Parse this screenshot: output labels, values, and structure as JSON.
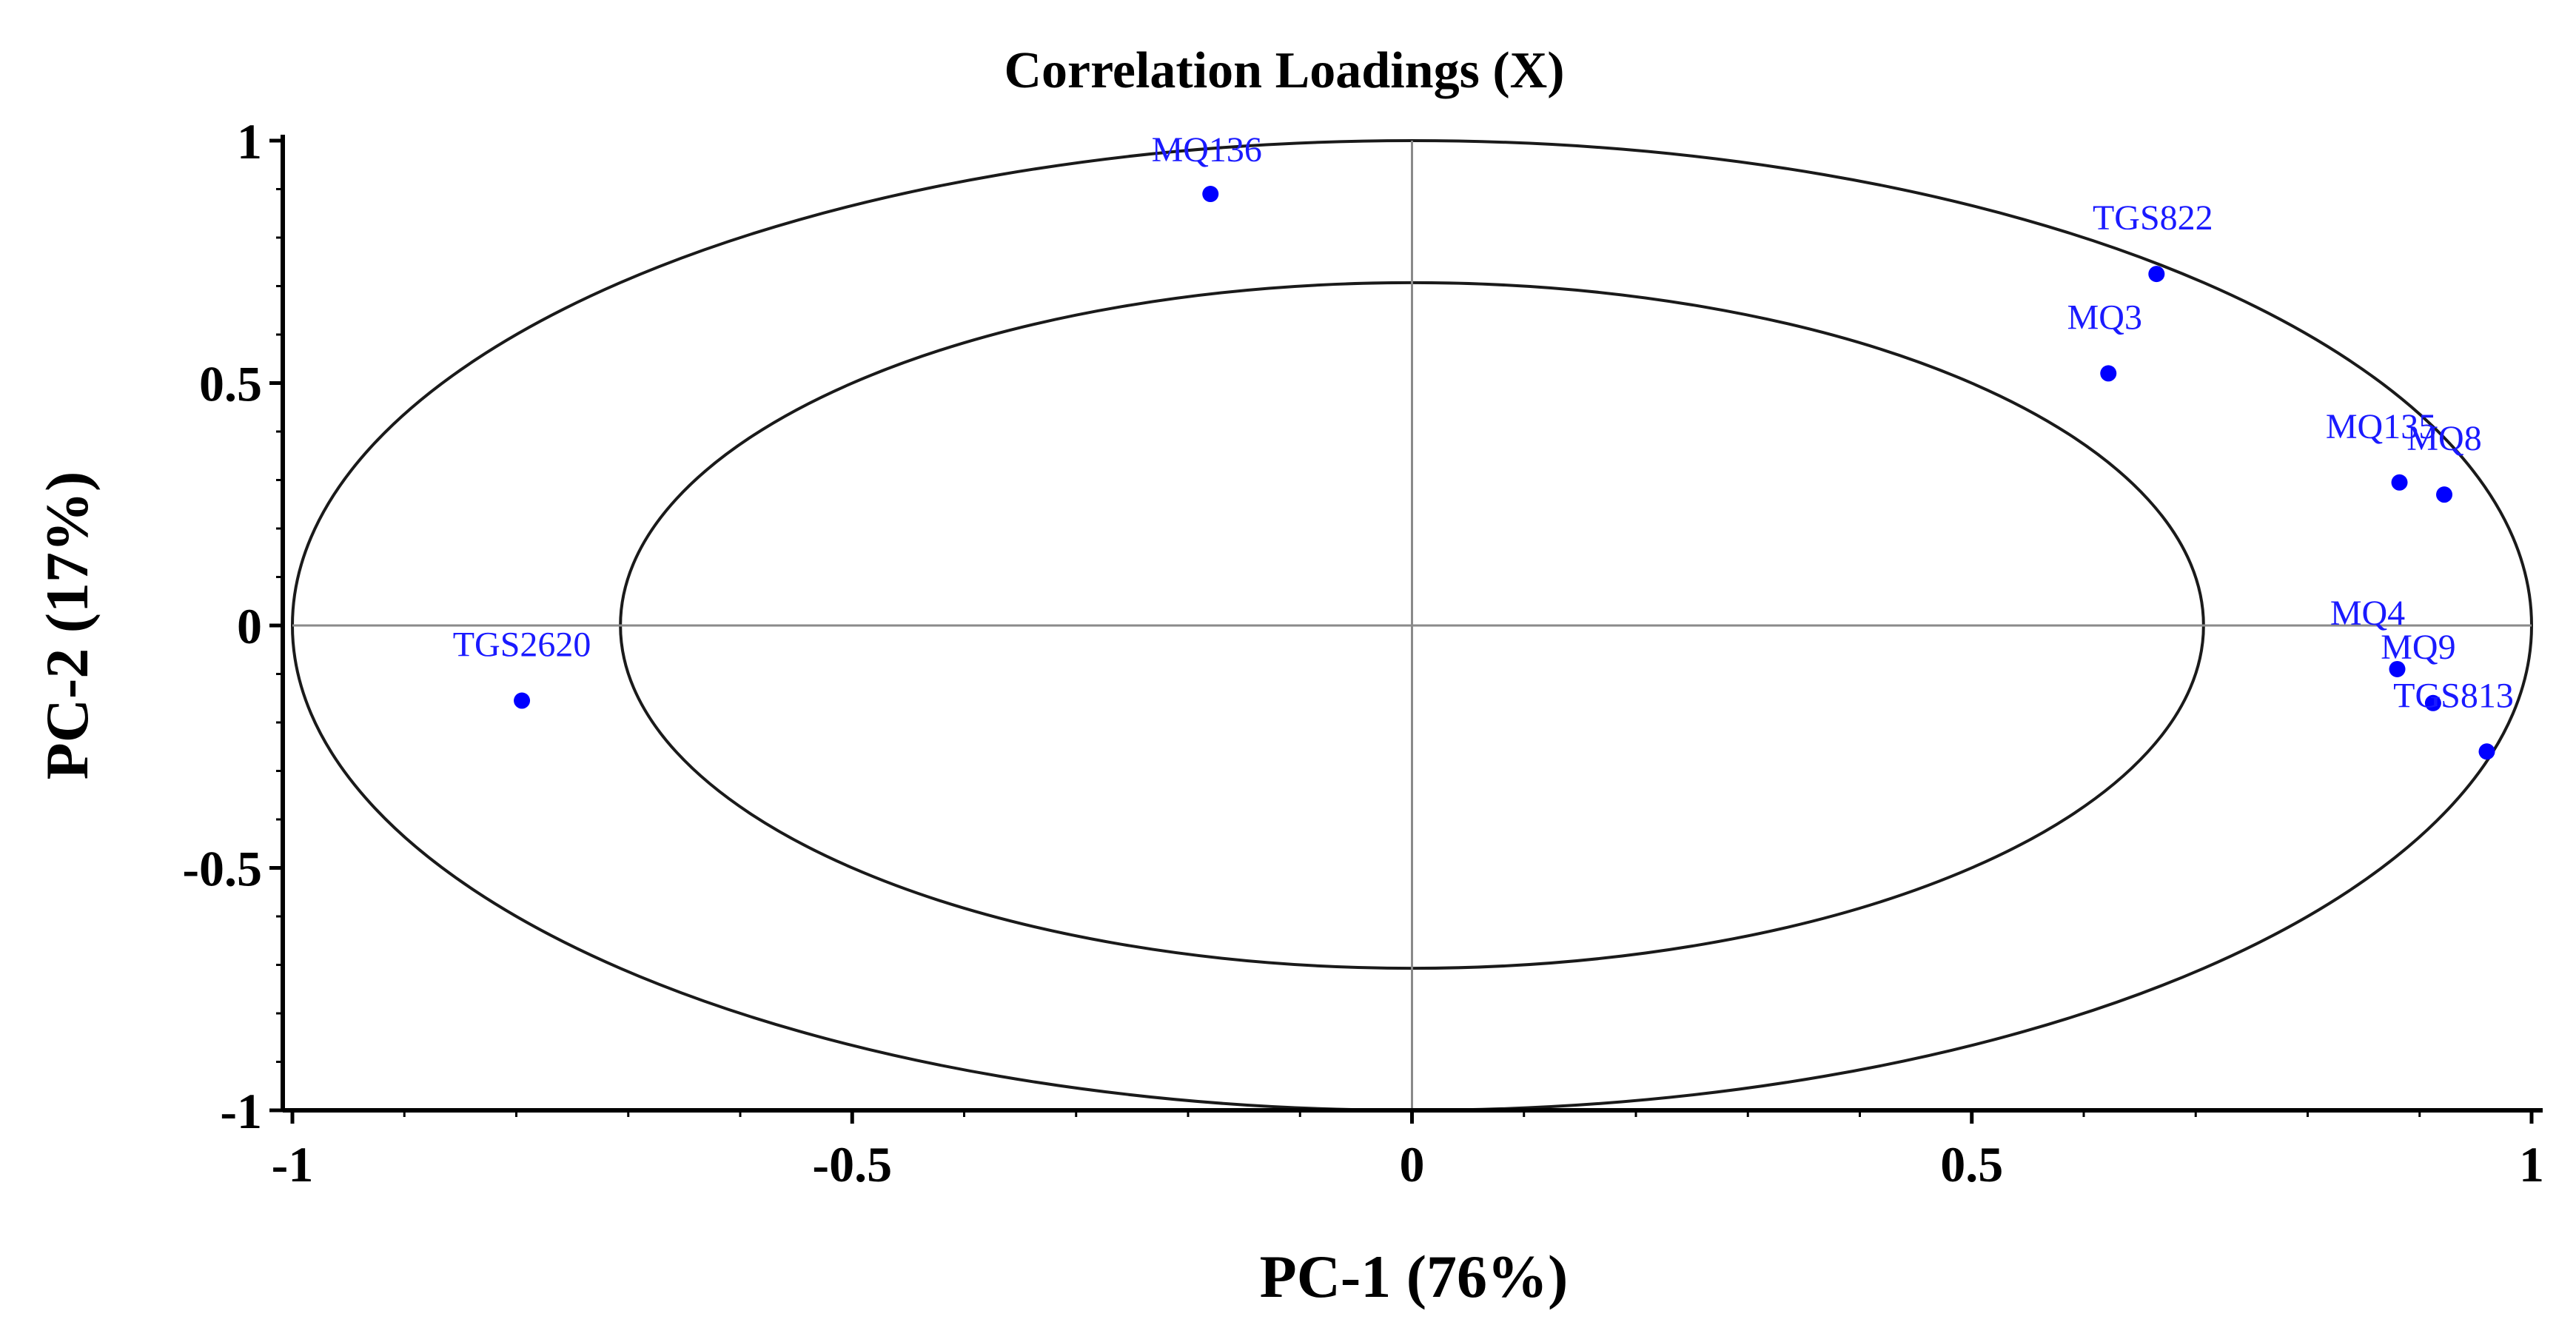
{
  "chart_data": {
    "type": "scatter",
    "title": "Correlation Loadings (X)",
    "xlabel": "PC-1 (76%)",
    "ylabel": "PC-2 (17%)",
    "xlim": [
      -1,
      1
    ],
    "ylim": [
      -1,
      1
    ],
    "x_ticks": [
      -1,
      -0.5,
      0,
      0.5,
      1
    ],
    "x_tick_labels": [
      "-1",
      "-0.5",
      "0",
      "0.5",
      "1"
    ],
    "y_ticks": [
      -1,
      -0.5,
      0,
      0.5,
      1
    ],
    "y_tick_labels": [
      "-1",
      "-0.5",
      "0",
      "0.5",
      "1"
    ],
    "grid": false,
    "legend": "none",
    "reference_ellipses": [
      {
        "name": "outer",
        "radius": 1.0
      },
      {
        "name": "inner",
        "radius": 0.707
      }
    ],
    "reference_lines": [
      {
        "axis": "x",
        "value": 0
      },
      {
        "axis": "y",
        "value": 0
      }
    ],
    "point_color": "#0000ff",
    "label_color": "#1a1aff",
    "points": [
      {
        "label": "MQ136",
        "x": -0.18,
        "y": 0.89
      },
      {
        "label": "TGS822",
        "x": 0.665,
        "y": 0.725
      },
      {
        "label": "MQ3",
        "x": 0.622,
        "y": 0.52
      },
      {
        "label": "MQ135",
        "x": 0.882,
        "y": 0.295
      },
      {
        "label": "MQ8",
        "x": 0.922,
        "y": 0.27
      },
      {
        "label": "TGS2620",
        "x": -0.795,
        "y": -0.155
      },
      {
        "label": "MQ4",
        "x": 0.88,
        "y": -0.09
      },
      {
        "label": "MQ9",
        "x": 0.912,
        "y": -0.16
      },
      {
        "label": "TGS813",
        "x": 0.96,
        "y": -0.26
      }
    ]
  }
}
